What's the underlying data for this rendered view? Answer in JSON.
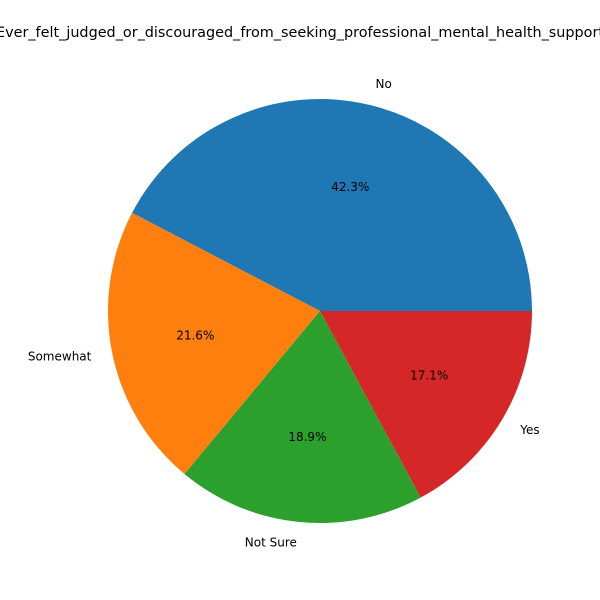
{
  "chart_data": {
    "type": "pie",
    "title": "Ever_felt_judged_or_discouraged_from_seeking_professional_mental_health_support",
    "slices": [
      {
        "label": "No",
        "value": 42.3,
        "pct_label": "42.3%",
        "color": "#1f77b4"
      },
      {
        "label": "Somewhat",
        "value": 21.6,
        "pct_label": "21.6%",
        "color": "#ff7f0e"
      },
      {
        "label": "Not Sure",
        "value": 18.9,
        "pct_label": "18.9%",
        "color": "#2ca02c"
      },
      {
        "label": "Yes",
        "value": 17.1,
        "pct_label": "17.1%",
        "color": "#d62728"
      }
    ],
    "start_angle_deg": 0,
    "direction": "counterclockwise",
    "legend": "none"
  }
}
